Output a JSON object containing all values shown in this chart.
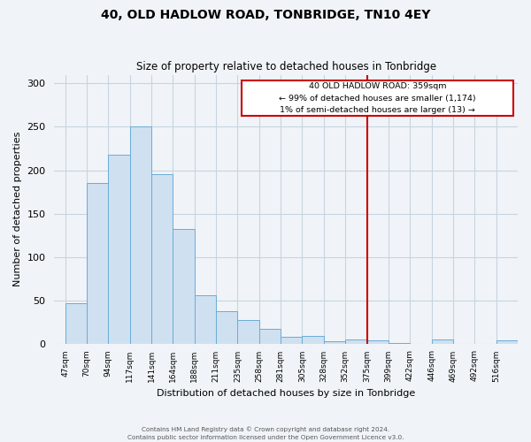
{
  "title": "40, OLD HADLOW ROAD, TONBRIDGE, TN10 4EY",
  "subtitle": "Size of property relative to detached houses in Tonbridge",
  "xlabel": "Distribution of detached houses by size in Tonbridge",
  "ylabel": "Number of detached properties",
  "bar_labels": [
    "47sqm",
    "70sqm",
    "94sqm",
    "117sqm",
    "141sqm",
    "164sqm",
    "188sqm",
    "211sqm",
    "235sqm",
    "258sqm",
    "281sqm",
    "305sqm",
    "328sqm",
    "352sqm",
    "375sqm",
    "399sqm",
    "422sqm",
    "446sqm",
    "469sqm",
    "492sqm",
    "516sqm"
  ],
  "bar_values": [
    47,
    185,
    218,
    250,
    196,
    132,
    56,
    38,
    28,
    17,
    8,
    9,
    3,
    5,
    4,
    1,
    0,
    5,
    0,
    0,
    4
  ],
  "bar_color": "#cfe0f0",
  "bar_edge_color": "#6aadd5",
  "ylim": [
    0,
    310
  ],
  "yticks": [
    0,
    50,
    100,
    150,
    200,
    250,
    300
  ],
  "vline_x_index": 13,
  "vline_color": "#cc0000",
  "annotation_title": "40 OLD HADLOW ROAD: 359sqm",
  "annotation_line1": "← 99% of detached houses are smaller (1,174)",
  "annotation_line2": "1% of semi-detached houses are larger (13) →",
  "annotation_box_color": "#cc0000",
  "footer_line1": "Contains HM Land Registry data © Crown copyright and database right 2024.",
  "footer_line2": "Contains public sector information licensed under the Open Government Licence v3.0.",
  "background_color": "#f0f4f8",
  "plot_bg_color": "#f0f4f8",
  "grid_color": "#c8d4e0"
}
